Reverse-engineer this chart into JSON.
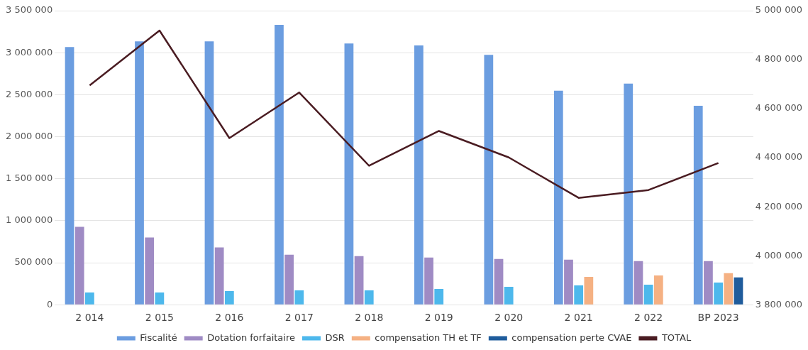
{
  "chart_data": {
    "type": "bar",
    "categories": [
      "2 014",
      "2 015",
      "2 016",
      "2 017",
      "2 018",
      "2 019",
      "2 020",
      "2 021",
      "2 022",
      "BP 2023"
    ],
    "series": [
      {
        "name": "Fiscalité",
        "color": "#6b9de0",
        "values": [
          3066000,
          3135000,
          3135000,
          3330000,
          3110000,
          3085000,
          2973000,
          2547000,
          2632000,
          2368000
        ]
      },
      {
        "name": "Dotation forfaitaire",
        "color": "#9f8bc4",
        "values": [
          928000,
          800000,
          681000,
          596000,
          579000,
          562000,
          545000,
          537000,
          520000,
          520000
        ]
      },
      {
        "name": "DSR",
        "color": "#4db8ec",
        "values": [
          145000,
          145000,
          162000,
          170000,
          170000,
          187000,
          213000,
          230000,
          238000,
          264000
        ]
      },
      {
        "name": "compensation TH et TF",
        "color": "#f5b183",
        "values": [
          null,
          null,
          null,
          null,
          null,
          null,
          null,
          332000,
          349000,
          375000
        ]
      },
      {
        "name": "compensation perte CVAE",
        "color": "#1f5c9c",
        "values": [
          null,
          null,
          null,
          null,
          null,
          null,
          null,
          null,
          null,
          324000
        ]
      },
      {
        "name": "TOTAL",
        "type": "line",
        "axis": "y2",
        "color": "#4a1c22",
        "values": [
          4695000,
          4919000,
          4480000,
          4666000,
          4367000,
          4509000,
          4401000,
          4236000,
          4268000,
          4378000
        ]
      }
    ],
    "ylim": [
      0,
      3500000
    ],
    "yticks": [
      {
        "value": 0,
        "label": "0"
      },
      {
        "value": 500000,
        "label": "500 000"
      },
      {
        "value": 1000000,
        "label": "1 000 000"
      },
      {
        "value": 1500000,
        "label": "1 500 000"
      },
      {
        "value": 2000000,
        "label": "2 000 000"
      },
      {
        "value": 2500000,
        "label": "2 500 000"
      },
      {
        "value": 3000000,
        "label": "3 000 000"
      },
      {
        "value": 3500000,
        "label": "3 500 000"
      }
    ],
    "y2lim": [
      3800000,
      5000000
    ],
    "y2ticks": [
      {
        "value": 3800000,
        "label": "3 800 000"
      },
      {
        "value": 4000000,
        "label": "4 000 000"
      },
      {
        "value": 4200000,
        "label": "4 200 000"
      },
      {
        "value": 4400000,
        "label": "4 400 000"
      },
      {
        "value": 4600000,
        "label": "4 600 000"
      },
      {
        "value": 4800000,
        "label": "4 800 000"
      },
      {
        "value": 5000000,
        "label": "5 000 000"
      }
    ],
    "grid": "y",
    "legend": "bottom",
    "marker": "none"
  }
}
